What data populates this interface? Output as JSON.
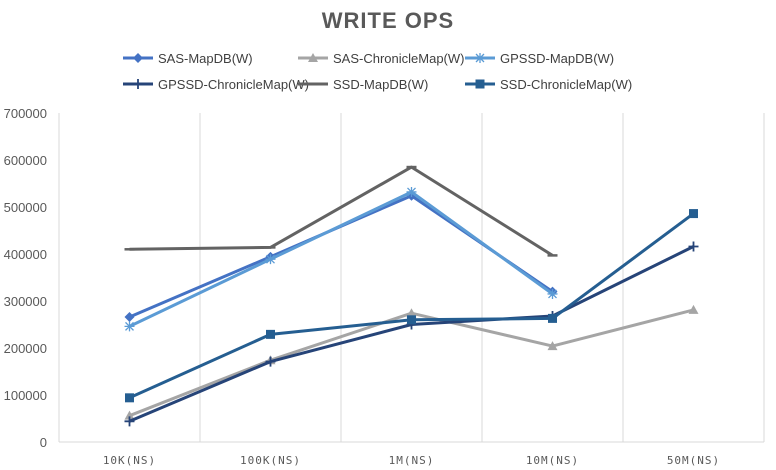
{
  "chart_data": {
    "type": "line",
    "title": "WRITE OPS",
    "xlabel": "",
    "ylabel": "",
    "categories": [
      "10K(NS)",
      "100K(NS)",
      "1M(NS)",
      "10M(NS)",
      "50M(NS)"
    ],
    "ylim": [
      0,
      700000
    ],
    "yticks": [
      0,
      100000,
      200000,
      300000,
      400000,
      500000,
      600000,
      700000
    ],
    "grid": "vertical",
    "legend": "top",
    "series": [
      {
        "name": "SAS-MapDB(W)",
        "color": "#4472c4",
        "marker": "diamond",
        "values": [
          266000,
          394000,
          524000,
          320000,
          null
        ]
      },
      {
        "name": "SAS-ChronicleMap(W)",
        "color": "#a5a5a5",
        "marker": "triangle",
        "values": [
          56000,
          174000,
          274000,
          204000,
          281000
        ]
      },
      {
        "name": "GPSSD-MapDB(W)",
        "color": "#5b9bd5",
        "marker": "star",
        "values": [
          246000,
          389000,
          532000,
          315000,
          null
        ]
      },
      {
        "name": "GPSSD-ChronicleMap(W)",
        "color": "#264478",
        "marker": "plus",
        "values": [
          44000,
          171000,
          250000,
          268000,
          416000
        ]
      },
      {
        "name": "SSD-MapDB(W)",
        "color": "#636363",
        "marker": "dash",
        "values": [
          410000,
          414000,
          585000,
          397000,
          null
        ]
      },
      {
        "name": "SSD-ChronicleMap(W)",
        "color": "#255e91",
        "marker": "square",
        "values": [
          94000,
          229000,
          260000,
          263000,
          486000
        ]
      }
    ]
  }
}
